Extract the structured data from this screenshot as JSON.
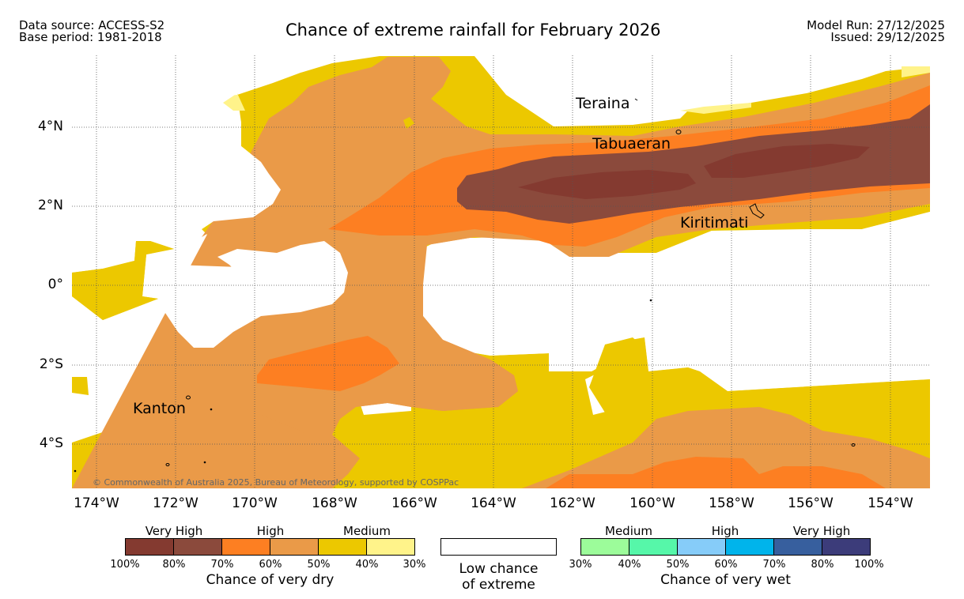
{
  "header": {
    "data_source": "Data source: ACCESS-S2",
    "base_period": "Base period: 1981-2018",
    "title": "Chance of extreme rainfall for February 2026",
    "model_run": "Model Run: 27/12/2025",
    "issued": "Issued: 29/12/2025"
  },
  "map": {
    "lon_labels": [
      "174°W",
      "172°W",
      "170°W",
      "168°W",
      "166°W",
      "164°W",
      "162°W",
      "160°W",
      "158°W",
      "156°W",
      "154°W"
    ],
    "lat_labels": [
      "4°N",
      "2°N",
      "0°",
      "2°S",
      "4°S"
    ],
    "places": {
      "teraina": "Teraina",
      "tabuaeran": "Tabuaeran",
      "kiritimati": "Kiritimati",
      "kanton": "Kanton"
    },
    "copyright": "© Commonwealth of Australia 2025, Bureau of Meteorology, supported by COSPPac",
    "colors": {
      "dry_very_high_dark": "#843a30",
      "dry_very_high": "#8b4a3c",
      "dry_high_dark": "#fd7f22",
      "dry_high": "#ea9a48",
      "dry_medium_dark": "#ecc800",
      "dry_medium": "#fff38a"
    }
  },
  "legend": {
    "dry": {
      "labels": [
        "Very High",
        "High",
        "Medium"
      ],
      "colors": [
        "#843a30",
        "#8b4a3c",
        "#fd7f22",
        "#ea9a48",
        "#ecc800",
        "#fff38a"
      ],
      "ticks": [
        "100%",
        "80%",
        "70%",
        "60%",
        "50%",
        "40%",
        "30%"
      ],
      "caption": "Chance of very dry"
    },
    "low": {
      "caption_line1": "Low chance",
      "caption_line2": "of extreme"
    },
    "wet": {
      "labels": [
        "Medium",
        "High",
        "Very High"
      ],
      "colors": [
        "#9cfc9a",
        "#56f7a9",
        "#86ccf9",
        "#00b4eb",
        "#375f9e",
        "#3c3c7a"
      ],
      "ticks": [
        "30%",
        "40%",
        "50%",
        "60%",
        "70%",
        "80%",
        "100%"
      ],
      "caption": "Chance of very wet"
    }
  }
}
